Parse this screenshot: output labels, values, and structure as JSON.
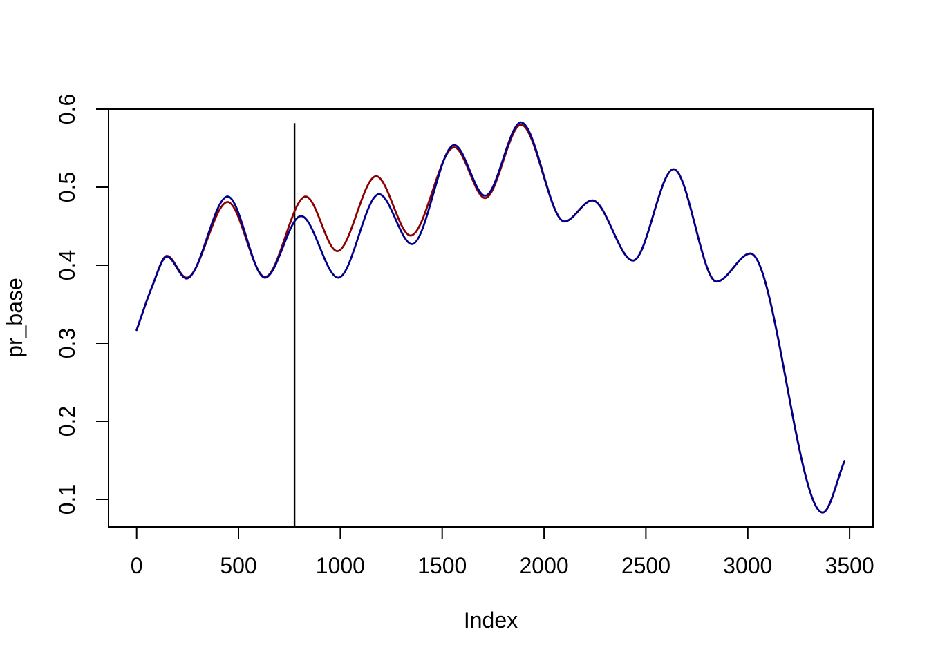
{
  "chart_data": {
    "type": "line",
    "title": "",
    "xlabel": "Index",
    "ylabel": "pr_base",
    "x_ticks": {
      "values": [
        0,
        500,
        1000,
        1500,
        2000,
        2500,
        3000,
        3500
      ],
      "labels": [
        "0",
        "500",
        "1000",
        "1500",
        "2000",
        "2500",
        "3000",
        "3500"
      ]
    },
    "y_ticks": {
      "values": [
        0.1,
        0.2,
        0.3,
        0.4,
        0.5,
        0.6
      ],
      "labels": [
        "0.1",
        "0.2",
        "0.3",
        "0.4",
        "0.5",
        "0.6"
      ]
    },
    "xlim": [
      -138,
      3615
    ],
    "ylim": [
      0.0646,
      0.6
    ],
    "grid": false,
    "legend": "none",
    "frame_box": true,
    "background": "#FFFFFF",
    "axis_color": "#000000",
    "vline": {
      "x": 775,
      "y_from": 0.0646,
      "y_to": 0.582,
      "color": "#000000"
    },
    "series": [
      {
        "name": "pr_base smooth (dark red)",
        "color": "#8B0000",
        "points": [
          [
            0,
            0.317
          ],
          [
            75,
            0.372
          ],
          [
            149,
            0.412
          ],
          [
            245,
            0.384
          ],
          [
            447,
            0.481
          ],
          [
            630,
            0.385
          ],
          [
            830,
            0.488
          ],
          [
            985,
            0.418
          ],
          [
            1176,
            0.514
          ],
          [
            1345,
            0.438
          ],
          [
            1559,
            0.551
          ],
          [
            1711,
            0.486
          ],
          [
            1887,
            0.58
          ],
          [
            2100,
            0.456
          ],
          [
            2237,
            0.483
          ],
          [
            2437,
            0.406
          ],
          [
            2636,
            0.523
          ],
          [
            2847,
            0.379
          ],
          [
            3013,
            0.415
          ],
          [
            3368,
            0.083
          ],
          [
            3475,
            0.149
          ]
        ]
      },
      {
        "name": "pr_base smooth (dark blue)",
        "color": "#00008B",
        "points": [
          [
            0,
            0.317
          ],
          [
            75,
            0.372
          ],
          [
            149,
            0.411
          ],
          [
            245,
            0.383
          ],
          [
            447,
            0.488
          ],
          [
            630,
            0.384
          ],
          [
            807,
            0.463
          ],
          [
            990,
            0.384
          ],
          [
            1190,
            0.491
          ],
          [
            1352,
            0.427
          ],
          [
            1559,
            0.554
          ],
          [
            1711,
            0.489
          ],
          [
            1887,
            0.583
          ],
          [
            2100,
            0.456
          ],
          [
            2237,
            0.483
          ],
          [
            2437,
            0.406
          ],
          [
            2636,
            0.523
          ],
          [
            2847,
            0.379
          ],
          [
            3013,
            0.415
          ],
          [
            3368,
            0.083
          ],
          [
            3475,
            0.149
          ]
        ]
      }
    ]
  }
}
